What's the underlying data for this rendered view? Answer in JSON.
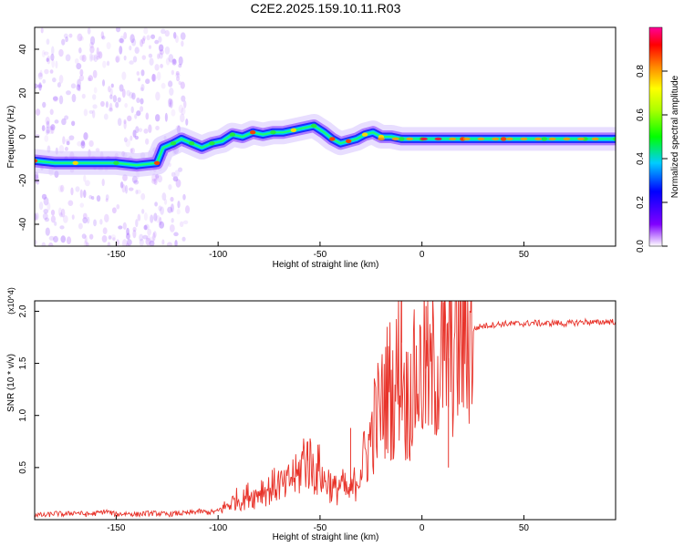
{
  "figure_title": "C2E2.2025.159.10.11.R03",
  "chart_data": [
    {
      "type": "heatmap",
      "xlabel": "Height of straight line (km)",
      "ylabel": "Frequency (Hz)",
      "xlim": [
        -190,
        95
      ],
      "ylim": [
        -50,
        50
      ],
      "x_ticks": [
        -150,
        -100,
        -50,
        0,
        50
      ],
      "y_ticks": [
        40,
        20,
        0,
        -20,
        -40
      ],
      "tick_labels_x": [
        "-150",
        "-100",
        "-50",
        "0",
        "50"
      ],
      "tick_labels_y": [
        "40",
        "20",
        "0",
        "-20",
        "-40"
      ],
      "colorbar": {
        "label": "Normalized spectral amplitude",
        "range": [
          0,
          1
        ],
        "ticks": [
          0.0,
          0.2,
          0.4,
          0.6,
          0.8
        ],
        "tick_labels": [
          "0.0",
          "0.2",
          "0.4",
          "0.6",
          "0.8"
        ]
      },
      "ridge": [
        [
          -190,
          -11
        ],
        [
          -180,
          -12
        ],
        [
          -170,
          -12
        ],
        [
          -160,
          -12
        ],
        [
          -150,
          -12
        ],
        [
          -140,
          -13
        ],
        [
          -130,
          -12
        ],
        [
          -127,
          -5
        ],
        [
          -122,
          -3
        ],
        [
          -118,
          -1
        ],
        [
          -113,
          -3
        ],
        [
          -108,
          -5
        ],
        [
          -103,
          -3
        ],
        [
          -98,
          -2
        ],
        [
          -93,
          1
        ],
        [
          -88,
          0
        ],
        [
          -83,
          2
        ],
        [
          -78,
          1
        ],
        [
          -73,
          2
        ],
        [
          -68,
          2
        ],
        [
          -63,
          3
        ],
        [
          -58,
          4
        ],
        [
          -53,
          5
        ],
        [
          -48,
          2
        ],
        [
          -44,
          -1
        ],
        [
          -40,
          -3
        ],
        [
          -36,
          -2
        ],
        [
          -32,
          -1
        ],
        [
          -28,
          1
        ],
        [
          -24,
          2
        ],
        [
          -20,
          0
        ],
        [
          -15,
          0
        ],
        [
          -10,
          -1
        ],
        [
          -5,
          -1
        ],
        [
          0,
          -1
        ],
        [
          10,
          -1
        ],
        [
          20,
          -1
        ],
        [
          30,
          -1
        ],
        [
          40,
          -1
        ],
        [
          50,
          -1
        ],
        [
          60,
          -1
        ],
        [
          70,
          -1
        ],
        [
          80,
          -1
        ],
        [
          90,
          -1
        ],
        [
          95,
          -1
        ]
      ]
    },
    {
      "type": "line",
      "xlabel": "Height of straight line (km)",
      "ylabel": "SNR (10 * v/v)",
      "y_scale_note": "(x10^4)",
      "xlim": [
        -190,
        95
      ],
      "ylim": [
        0,
        2.1
      ],
      "x_ticks": [
        -150,
        -100,
        -50,
        0,
        50
      ],
      "y_ticks": [
        0.5,
        1.0,
        1.5,
        2.0
      ],
      "tick_labels_x": [
        "-150",
        "-100",
        "-50",
        "0",
        "50"
      ],
      "tick_labels_y": [
        "0.5",
        "1.0",
        "1.5",
        "2.0"
      ],
      "line_color": "#e8332a",
      "series": [
        {
          "x": [
            -190,
            -185,
            -180,
            -175,
            -170,
            -165,
            -160,
            -155,
            -150,
            -145,
            -140,
            -135,
            -130,
            -125,
            -120,
            -115,
            -110,
            -105,
            -100,
            -97,
            -94,
            -91,
            -88,
            -85,
            -82,
            -79,
            -76,
            -73,
            -70,
            -67,
            -64,
            -61,
            -58,
            -55,
            -52,
            -50,
            -48,
            -46,
            -44,
            -42,
            -40,
            -38,
            -36,
            -34,
            -32,
            -30,
            -28,
            -26,
            -24,
            -22,
            -20,
            -18,
            -16,
            -14,
            -12,
            -10,
            -8,
            -6,
            -4,
            -2,
            0,
            2,
            4,
            6,
            8,
            10,
            12,
            14,
            16,
            18,
            20,
            22,
            24,
            26,
            28,
            30,
            35,
            40,
            45,
            50,
            55,
            60,
            65,
            70,
            75,
            80,
            85,
            90,
            95
          ],
          "values": [
            0.05,
            0.04,
            0.06,
            0.05,
            0.07,
            0.05,
            0.06,
            0.08,
            0.05,
            0.06,
            0.05,
            0.06,
            0.06,
            0.05,
            0.06,
            0.06,
            0.08,
            0.07,
            0.08,
            0.12,
            0.15,
            0.2,
            0.18,
            0.25,
            0.22,
            0.3,
            0.28,
            0.32,
            0.35,
            0.3,
            0.42,
            0.4,
            0.6,
            0.55,
            0.45,
            0.5,
            0.35,
            0.38,
            0.3,
            0.28,
            0.35,
            0.3,
            0.25,
            0.3,
            0.4,
            0.5,
            0.6,
            0.7,
            0.9,
            1.0,
            1.05,
            1.2,
            1.3,
            1.15,
            1.4,
            1.7,
            1.1,
            1.2,
            1.3,
            1.35,
            1.4,
            1.45,
            1.3,
            1.5,
            1.45,
            1.55,
            1.5,
            1.6,
            1.65,
            1.7,
            1.72,
            1.75,
            1.8,
            1.83,
            1.85,
            1.86,
            1.87,
            1.88,
            1.88,
            1.88,
            1.89,
            1.88,
            1.89,
            1.88,
            1.89,
            1.9,
            1.89,
            1.9,
            1.9
          ]
        }
      ],
      "spikes": [
        {
          "x": -10,
          "y": 2.1
        },
        {
          "x": 2,
          "y": 2.05
        },
        {
          "x": 11,
          "y": 2.1
        },
        {
          "x": -56,
          "y": 0.75
        },
        {
          "x": -35,
          "y": 0.88
        },
        {
          "x": 13,
          "y": 0.5
        }
      ]
    }
  ]
}
